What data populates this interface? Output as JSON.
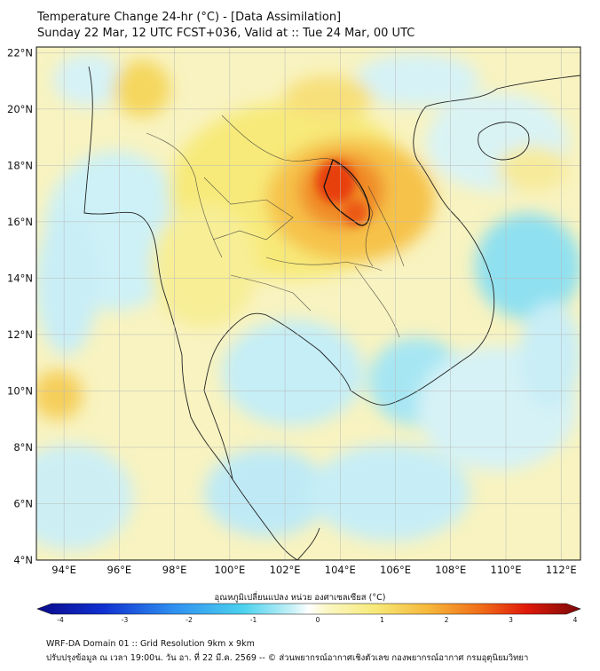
{
  "header": {
    "line1": "Temperature Change 24-hr (°C) - [Data Assimilation]",
    "line2": "Sunday 22 Mar, 12 UTC FCST+036, Valid at :: Tue 24 Mar, 00 UTC"
  },
  "map": {
    "lon_range": [
      93,
      112.7
    ],
    "lat_range": [
      4,
      22.2
    ],
    "lat_ticks": [
      "22°N",
      "20°N",
      "18°N",
      "16°N",
      "14°N",
      "12°N",
      "10°N",
      "8°N",
      "6°N",
      "4°N"
    ],
    "lon_ticks": [
      "94°E",
      "96°E",
      "98°E",
      "100°E",
      "102°E",
      "104°E",
      "106°E",
      "108°E",
      "110°E",
      "112°E"
    ]
  },
  "colorbar": {
    "title": "อุณหภูมิเปลี่ยนแปลง หน่วย องศาเซลเซียส (°C)",
    "ticks": [
      "-4",
      "-3",
      "-2",
      "-1",
      "0",
      "1",
      "2",
      "3",
      "4"
    ],
    "range": [
      -4,
      4
    ]
  },
  "footer": {
    "line1": "WRF-DA Domain 01 :: Grid Resolution 9km x 9km",
    "line2": "ปรับปรุงข้อมูล ณ เวลา 19:00น. วัน อา. ที่ 22 มี.ค. 2569 -- © ส่วนพยากรณ์อากาศเชิงตัวเลข กองพยากรณ์อากาศ กรมอุตุนิยมวิทยา"
  },
  "colors": {
    "warm_peak": "#e8400f",
    "warm": "#f6c24a",
    "yellow": "#f8ef8e",
    "cool": "#8fe0f0",
    "cool_deep": "#3ec4ea"
  }
}
